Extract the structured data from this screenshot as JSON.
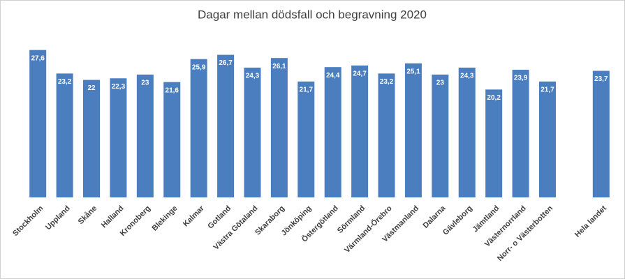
{
  "chart_data": {
    "type": "bar",
    "title": "Dagar mellan dödsfall och begravning 2020",
    "categories": [
      "Stockholm",
      "Uppland",
      "Skåne",
      "Halland",
      "Kronoberg",
      "Blekinge",
      "Kalmar",
      "Gotland",
      "Västra Götaland",
      "Skaraborg",
      "Jönköping",
      "Östergötland",
      "Sörmland",
      "Värmland-Örebro",
      "Västmanland",
      "Dalarna",
      "Gävleborg",
      "Jämtland",
      "Västernorrland",
      "Norr- o Västerbotten",
      null,
      "Hela landet"
    ],
    "values": [
      27.6,
      23.2,
      22,
      22.3,
      23,
      21.6,
      25.9,
      26.7,
      24.3,
      26.1,
      21.7,
      24.4,
      24.7,
      23.2,
      25.1,
      23,
      24.3,
      20.2,
      23.9,
      21.7,
      null,
      23.7
    ],
    "value_labels": [
      "27,6",
      "23,2",
      "22",
      "22,3",
      "23",
      "21,6",
      "25,9",
      "26,7",
      "24,3",
      "26,1",
      "21,7",
      "24,4",
      "24,7",
      "23,2",
      "25,1",
      "23",
      "24,3",
      "20,2",
      "23,9",
      "21,7",
      null,
      "23,7"
    ],
    "color": "#4a7ebf",
    "ylim": [
      0,
      32
    ]
  }
}
